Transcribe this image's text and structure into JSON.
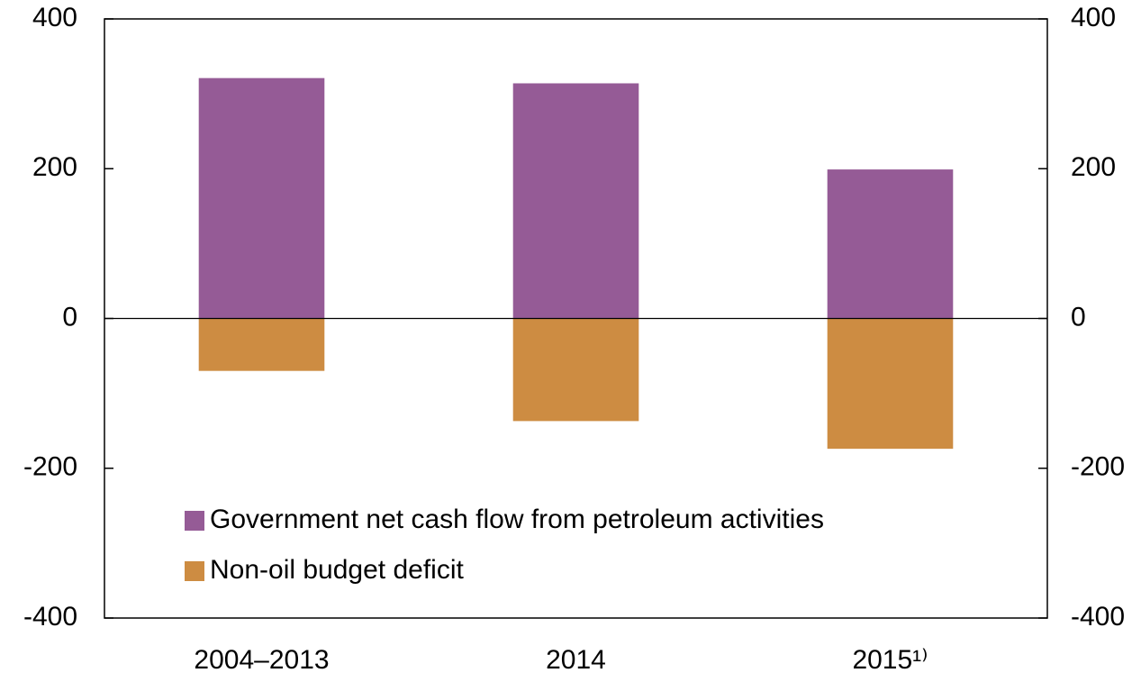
{
  "chart_data": {
    "type": "bar",
    "categories": [
      "2004–2013",
      "2014",
      "2015¹⁾"
    ],
    "series": [
      {
        "name": "Government net cash flow from petroleum activities",
        "color": "#955b96",
        "values": [
          321,
          314,
          199
        ]
      },
      {
        "name": "Non-oil budget deficit",
        "color": "#cd8c42",
        "values": [
          -70,
          -137,
          -174
        ]
      }
    ],
    "ylim": [
      -400,
      400
    ],
    "yticks": [
      -400,
      -200,
      0,
      200,
      400
    ],
    "y2lim": [
      -400,
      400
    ],
    "y2ticks": [
      -400,
      -200,
      0,
      200,
      400
    ],
    "legend": "lower left"
  }
}
